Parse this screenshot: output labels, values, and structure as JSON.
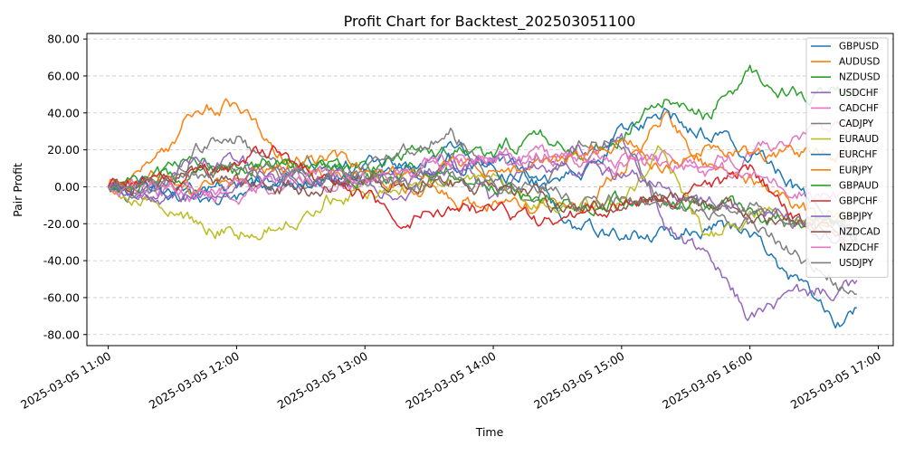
{
  "chart_data": {
    "type": "line",
    "title": "Profit Chart for Backtest_202503051100",
    "xlabel": "Time",
    "ylabel": "Pair Profit",
    "x_range": [
      "2025-03-05 11:00",
      "2025-03-05 16:50"
    ],
    "xlim": [
      "2025-03-05 10:50",
      "2025-03-05 17:07"
    ],
    "ylim": [
      -86,
      83
    ],
    "x_ticks": [
      "2025-03-05 11:00",
      "2025-03-05 12:00",
      "2025-03-05 13:00",
      "2025-03-05 14:00",
      "2025-03-05 15:00",
      "2025-03-05 16:00",
      "2025-03-05 17:00"
    ],
    "y_ticks": [
      "80.00",
      "60.00",
      "40.00",
      "20.00",
      "0.00",
      "-20.00",
      "-40.00",
      "-60.00",
      "-80.00"
    ],
    "grid": "horizontal dashed",
    "legend_position": "top-right",
    "sample_times": [
      "11:00",
      "11:20",
      "11:40",
      "12:00",
      "12:20",
      "12:40",
      "13:00",
      "13:20",
      "13:40",
      "14:00",
      "14:20",
      "14:40",
      "15:00",
      "15:20",
      "15:40",
      "16:00",
      "16:20",
      "16:40",
      "16:50"
    ],
    "series": [
      {
        "name": "GBPUSD",
        "color": "#1f77b4",
        "values": [
          0,
          -5,
          -4,
          -2,
          5,
          15,
          10,
          12,
          18,
          12,
          2,
          -25,
          -25,
          -27,
          -20,
          -25,
          -50,
          -75,
          -68
        ]
      },
      {
        "name": "AUDUSD",
        "color": "#ff7f0e",
        "values": [
          0,
          8,
          42,
          45,
          20,
          8,
          5,
          0,
          -5,
          -8,
          -10,
          -12,
          10,
          40,
          12,
          5,
          -10,
          -20,
          -20
        ]
      },
      {
        "name": "NZDUSD",
        "color": "#2ca02c",
        "values": [
          0,
          5,
          15,
          10,
          15,
          12,
          10,
          18,
          22,
          15,
          30,
          18,
          28,
          46,
          38,
          62,
          52,
          48,
          45
        ]
      },
      {
        "name": "USDCHF",
        "color": "#9467bd",
        "values": [
          0,
          -5,
          18,
          12,
          5,
          2,
          0,
          0,
          20,
          -10,
          20,
          22,
          25,
          -20,
          -40,
          -70,
          -60,
          -55,
          -55
        ]
      },
      {
        "name": "CADCHF",
        "color": "#e377c2",
        "values": [
          0,
          -2,
          -3,
          -2,
          0,
          2,
          3,
          10,
          14,
          15,
          15,
          14,
          14,
          16,
          12,
          18,
          25,
          30,
          32
        ]
      },
      {
        "name": "CADJPY",
        "color": "#7f7f7f",
        "values": [
          0,
          -5,
          20,
          28,
          10,
          8,
          5,
          18,
          30,
          5,
          -10,
          20,
          25,
          -10,
          -15,
          -20,
          -35,
          -50,
          -60
        ]
      },
      {
        "name": "EURAUD",
        "color": "#bcbd22",
        "values": [
          0,
          -10,
          -20,
          -25,
          -20,
          -5,
          -2,
          0,
          5,
          5,
          -5,
          -15,
          -10,
          20,
          -30,
          -15,
          -20,
          -15,
          -25
        ]
      },
      {
        "name": "EURCHF",
        "color": "#1f77b4",
        "values": [
          0,
          0,
          -2,
          0,
          3,
          5,
          8,
          12,
          15,
          10,
          5,
          5,
          30,
          40,
          28,
          20,
          0,
          -20,
          -25
        ]
      },
      {
        "name": "EURJPY",
        "color": "#ff7f0e",
        "values": [
          0,
          5,
          0,
          5,
          8,
          15,
          10,
          5,
          10,
          10,
          10,
          15,
          25,
          10,
          20,
          15,
          18,
          20,
          18
        ]
      },
      {
        "name": "GBPAUD",
        "color": "#2ca02c",
        "values": [
          0,
          5,
          8,
          10,
          15,
          10,
          5,
          5,
          8,
          0,
          -5,
          -10,
          -8,
          -5,
          -10,
          -15,
          -20,
          -20,
          -20
        ]
      },
      {
        "name": "GBPCHF",
        "color": "#d62728",
        "values": [
          0,
          5,
          5,
          12,
          20,
          5,
          -5,
          -15,
          -15,
          -10,
          -20,
          -15,
          -10,
          -5,
          -5,
          10,
          -15,
          -30,
          -35
        ]
      },
      {
        "name": "GBPJPY",
        "color": "#9467bd",
        "values": [
          0,
          -5,
          -5,
          0,
          5,
          5,
          5,
          5,
          10,
          15,
          15,
          10,
          5,
          0,
          -10,
          -15,
          -20,
          -25,
          -25
        ]
      },
      {
        "name": "NZDCAD",
        "color": "#8c564b",
        "values": [
          0,
          0,
          5,
          5,
          0,
          0,
          3,
          5,
          2,
          0,
          -5,
          -15,
          -10,
          -5,
          -10,
          -15,
          -20,
          -22,
          -25
        ]
      },
      {
        "name": "NZDCHF",
        "color": "#e377c2",
        "values": [
          0,
          -2,
          -2,
          0,
          3,
          5,
          5,
          8,
          10,
          15,
          18,
          15,
          12,
          15,
          10,
          5,
          0,
          -5,
          -5
        ]
      },
      {
        "name": "USDJPY",
        "color": "#7f7f7f",
        "values": [
          0,
          0,
          5,
          10,
          5,
          3,
          5,
          0,
          5,
          5,
          0,
          -5,
          -5,
          -10,
          -15,
          -10,
          -20,
          -20,
          -20
        ]
      }
    ]
  }
}
